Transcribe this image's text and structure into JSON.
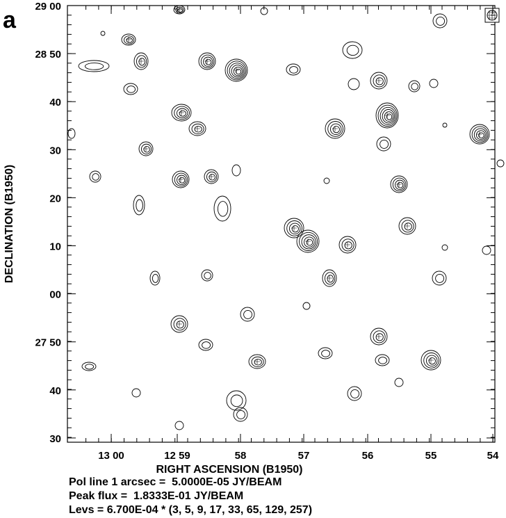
{
  "panel_label": "a",
  "x_axis": {
    "label": "RIGHT ASCENSION (B1950)",
    "ticks": [
      "13 00",
      "12 59",
      "58",
      "57",
      "56",
      "55",
      "54"
    ]
  },
  "y_axis": {
    "label": "DECLINATION (B1950)",
    "ticks": [
      "29 00",
      "28 50",
      "40",
      "30",
      "20",
      "10",
      "00",
      "27 50",
      "40",
      "30"
    ]
  },
  "notes": [
    "Pol line 1 arcsec =  5.0000E-05 JY/BEAM",
    "Peak flux =  1.8333E-01 JY/BEAM",
    "Levs = 6.700E-04 * (3, 5, 9, 17, 33, 65, 129, 257)"
  ]
}
